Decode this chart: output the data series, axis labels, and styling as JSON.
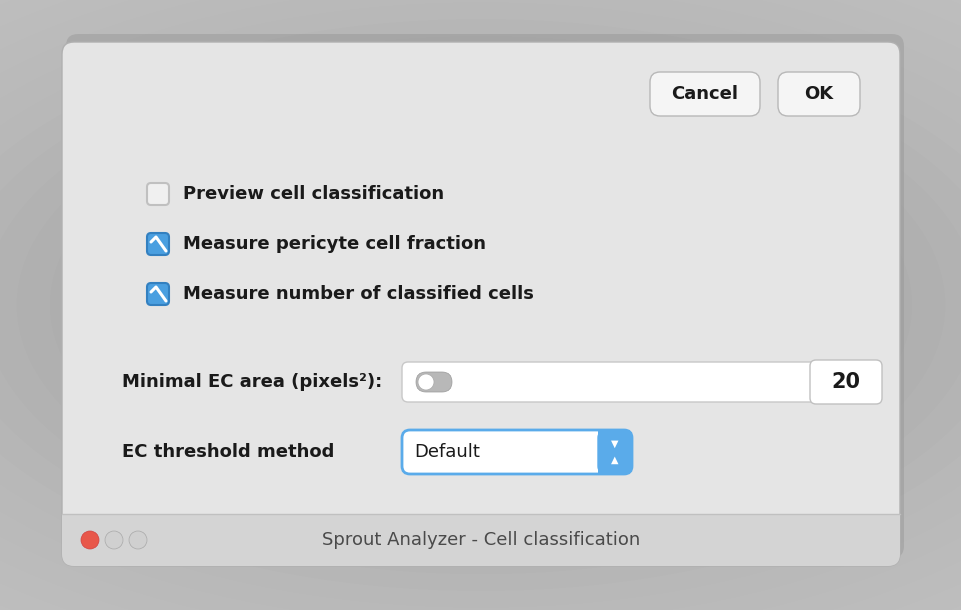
{
  "title": "Sprout Analyzer - Cell classification",
  "bg_outer": "#c0c0c0",
  "bg_dialog": "#e5e5e5",
  "titlebar_color": "#d4d4d4",
  "title_text_color": "#4a4a4a",
  "body_text_color": "#1a1a1a",
  "ec_threshold_label": "EC threshold method",
  "ec_threshold_value": "Default",
  "minimal_ec_label": "Minimal EC area (pixels²):",
  "minimal_ec_value": "20",
  "checkbox1_label": "Measure number of classified cells",
  "checkbox2_label": "Measure pericyte cell fraction",
  "checkbox3_label": "Preview cell classification",
  "checkbox1_checked": true,
  "checkbox2_checked": true,
  "checkbox3_checked": false,
  "button1_label": "Cancel",
  "button2_label": "OK",
  "checkbox_blue": "#4a9fe0",
  "dropdown_blue": "#5aabea",
  "button_bg": "#f5f5f5",
  "button_border": "#b8b8b8",
  "input_bg": "#ffffff",
  "toggle_bg": "#b8b8b8",
  "traffic_red": "#e8574a",
  "traffic_gray1": "#d0d0d0",
  "traffic_gray2": "#d0d0d0"
}
